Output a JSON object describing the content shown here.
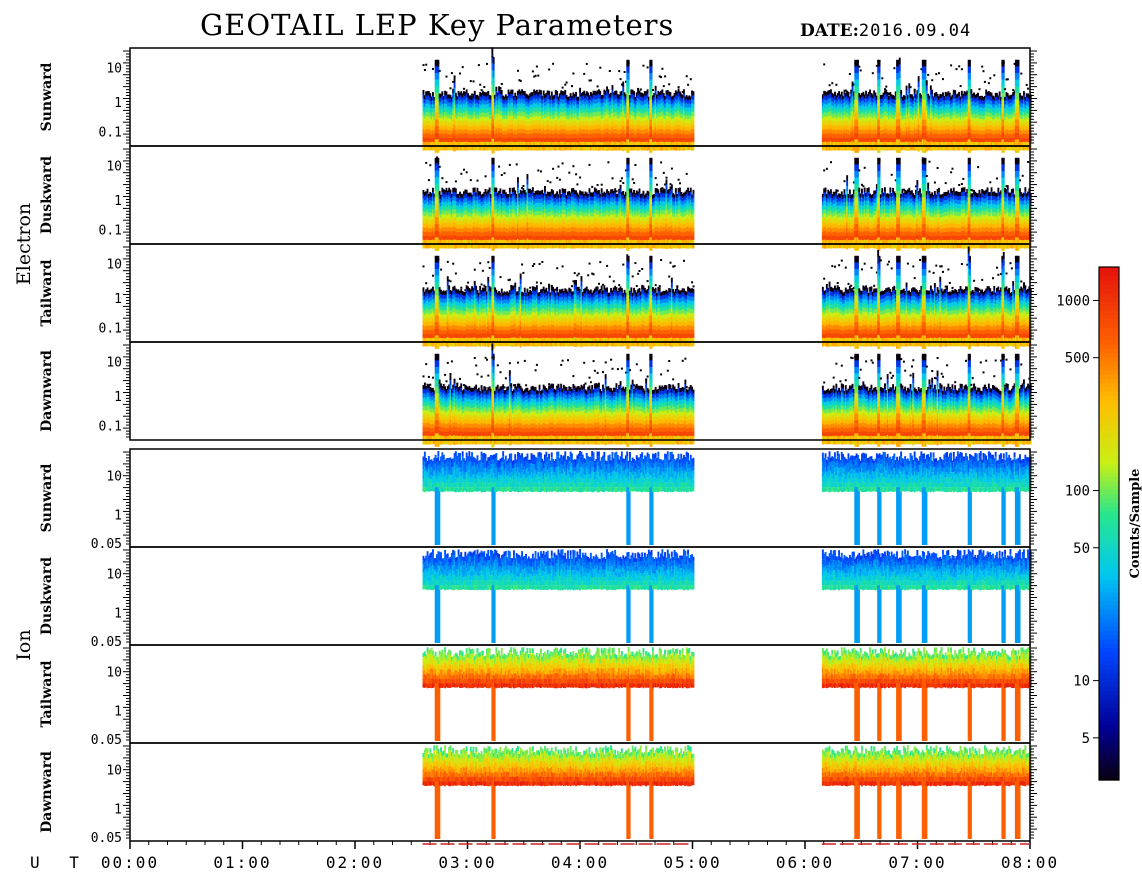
{
  "title": "GEOTAIL LEP Key Parameters",
  "date_label": "DATE:",
  "date_value": "2016.09.04",
  "time_axis_label": "U T",
  "chart_data": {
    "type": "heatmap",
    "x_unit": "UT",
    "x_range": [
      "00:00",
      "08:00"
    ],
    "x_ticks": [
      "00:00",
      "01:00",
      "02:00",
      "03:00",
      "04:00",
      "05:00",
      "06:00",
      "07:00",
      "08:00"
    ],
    "data_intervals_ut": [
      [
        "02:36",
        "05:00"
      ],
      [
        "06:09",
        "08:00"
      ]
    ],
    "groups": [
      {
        "name": "Electron",
        "panels": [
          {
            "label": "Sunward",
            "y_ticks": [
              "10",
              "1",
              "0.1"
            ]
          },
          {
            "label": "Duskward",
            "y_ticks": [
              "10",
              "1",
              "0.1"
            ]
          },
          {
            "label": "Tailward",
            "y_ticks": [
              "10",
              "1",
              "0.1"
            ]
          },
          {
            "label": "Dawnward",
            "y_ticks": [
              "10",
              "1",
              "0.1"
            ]
          }
        ]
      },
      {
        "name": "Ion",
        "panels": [
          {
            "label": "Sunward",
            "y_ticks": [
              "10",
              "1",
              "0.05"
            ]
          },
          {
            "label": "Duskward",
            "y_ticks": [
              "10",
              "1",
              "0.05"
            ]
          },
          {
            "label": "Tailward",
            "y_ticks": [
              "10",
              "1",
              "0.05"
            ]
          },
          {
            "label": "Dawnward",
            "y_ticks": [
              "10",
              "1",
              "0.05"
            ]
          }
        ]
      }
    ],
    "colorbar": {
      "label": "Counts/Sample",
      "scale": "log",
      "range": [
        3,
        1500
      ],
      "ticks": [
        5,
        10,
        50,
        100,
        500,
        1000
      ]
    }
  }
}
